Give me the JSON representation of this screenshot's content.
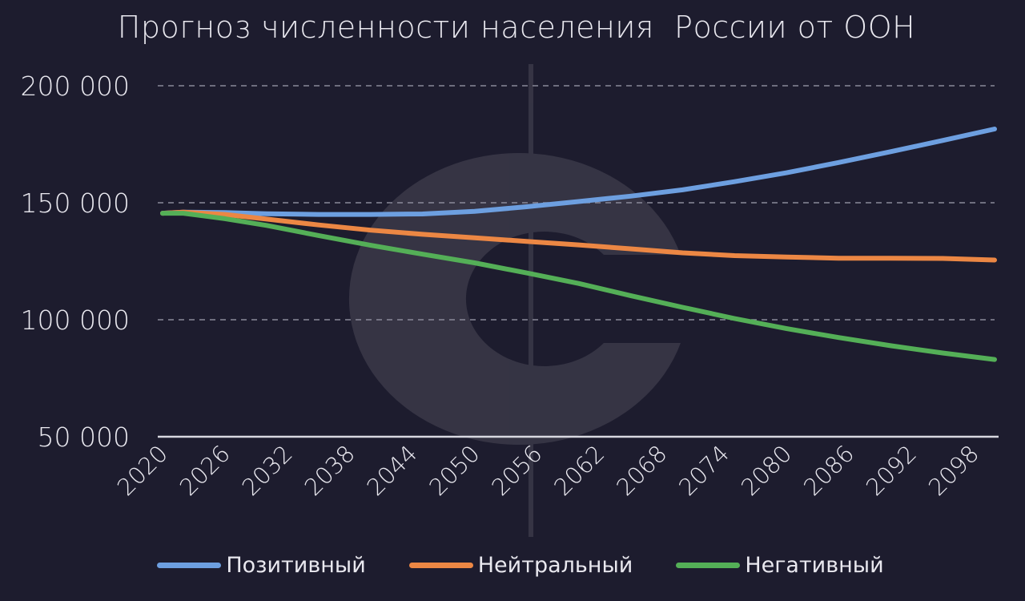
{
  "colors": {
    "background": "#1d1c2e",
    "grid": "#8a8a99",
    "axis": "#d8d8e0",
    "text": "#e9e8ef",
    "watermark": "#4a4957"
  },
  "chart_data": {
    "type": "line",
    "title": "Прогноз численности населения  России от ООН",
    "xlabel": "",
    "ylabel": "",
    "xlim": [
      2020,
      2100
    ],
    "ylim": [
      50000,
      200000
    ],
    "y_ticks": [
      50000,
      100000,
      150000,
      200000
    ],
    "y_tick_labels": [
      "50 000",
      "100 000",
      "150 000",
      "200 000"
    ],
    "x_ticks": [
      "2020",
      "2026",
      "2032",
      "2038",
      "2044",
      "2050",
      "2056",
      "2062",
      "2068",
      "2074",
      "2080",
      "2086",
      "2092",
      "2098"
    ],
    "grid": "horizontal-dashed",
    "legend_position": "bottom",
    "x": [
      2020,
      2022,
      2026,
      2030,
      2035,
      2040,
      2045,
      2050,
      2055,
      2060,
      2065,
      2070,
      2075,
      2080,
      2085,
      2090,
      2095,
      2100
    ],
    "series": [
      {
        "name": "Позитивный",
        "color": "#6d9fe0",
        "values": [
          145500,
          146000,
          145800,
          145300,
          145000,
          145000,
          145200,
          146300,
          148300,
          150500,
          152800,
          155500,
          159000,
          162800,
          167200,
          171800,
          176600,
          181500
        ]
      },
      {
        "name": "Нейтральный",
        "color": "#ec8744",
        "values": [
          145500,
          146000,
          145000,
          143000,
          140500,
          138300,
          136500,
          135000,
          133500,
          132000,
          130300,
          128600,
          127400,
          126800,
          126300,
          126300,
          126200,
          125500
        ]
      },
      {
        "name": "Негативный",
        "color": "#54af57",
        "values": [
          145500,
          145500,
          143200,
          140300,
          136000,
          131800,
          128000,
          124300,
          120000,
          115500,
          110300,
          105300,
          100500,
          96200,
          92400,
          88900,
          85800,
          83000
        ]
      }
    ]
  }
}
